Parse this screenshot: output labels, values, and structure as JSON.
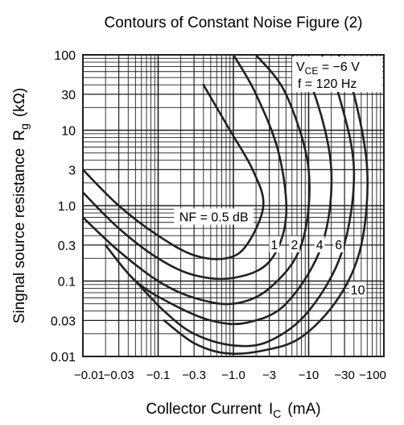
{
  "chart_data": {
    "type": "line",
    "title": "Contours of Constant Noise Figure (2)",
    "xlabel": "Collector Current",
    "xlabel_symbol": "I",
    "xlabel_sub": "C",
    "xlabel_unit": "(mA)",
    "ylabel": "Singnal source resistance",
    "ylabel_symbol": "R",
    "ylabel_sub": "g",
    "ylabel_unit": "(kΩ)",
    "x_scale": "log",
    "y_scale": "log",
    "xlim": [
      0.01,
      100
    ],
    "ylim": [
      0.01,
      100
    ],
    "x_direction": "negative current, magnitude increases to the right",
    "x_ticks": [
      "−0.01",
      "−0.03",
      "−0.1",
      "−0.3",
      "−1.0",
      "−3",
      "−10",
      "−30",
      "−100"
    ],
    "y_ticks": [
      "100",
      "30",
      "10",
      "3",
      "1.0",
      "0.3",
      "0.1",
      "0.03",
      "0.01"
    ],
    "grid": true,
    "conditions": {
      "vce_symbol": "V",
      "vce_sub": "CE",
      "vce_value": " = −6 V",
      "freq": "f = 120 Hz"
    },
    "series": [
      {
        "name": "NF = 0.5 dB",
        "x": [
          0.01,
          0.03,
          0.1,
          0.3,
          0.8,
          1.5,
          2.5,
          1.8,
          0.9,
          0.4
        ],
        "y": [
          3,
          1.0,
          0.4,
          0.22,
          0.2,
          0.3,
          1.0,
          3,
          10,
          40
        ]
      },
      {
        "name": "1",
        "x": [
          0.01,
          0.03,
          0.1,
          0.3,
          1.0,
          3.0,
          5.0,
          4.0,
          2.0,
          1.0
        ],
        "y": [
          1.5,
          0.5,
          0.2,
          0.12,
          0.11,
          0.18,
          0.7,
          5,
          30,
          100
        ]
      },
      {
        "name": "2",
        "x": [
          0.01,
          0.03,
          0.1,
          0.3,
          1.0,
          3.0,
          8.0,
          10.0,
          5.0,
          2.0
        ],
        "y": [
          0.7,
          0.25,
          0.1,
          0.06,
          0.05,
          0.08,
          0.3,
          3,
          30,
          100
        ]
      },
      {
        "name": "4",
        "x": [
          0.02,
          0.05,
          0.15,
          0.5,
          1.5,
          5.0,
          15.0,
          20.0,
          12.0,
          6.0
        ],
        "y": [
          0.3,
          0.1,
          0.05,
          0.03,
          0.028,
          0.05,
          0.3,
          3,
          30,
          100
        ]
      },
      {
        "name": "6",
        "x": [
          0.05,
          0.12,
          0.3,
          1.0,
          3.0,
          10.0,
          28.0,
          40.0,
          25.0,
          15.0
        ],
        "y": [
          0.1,
          0.04,
          0.02,
          0.014,
          0.016,
          0.04,
          0.25,
          3,
          30,
          100
        ]
      },
      {
        "name": "10",
        "x": [
          0.12,
          0.3,
          0.8,
          2.5,
          8.0,
          25.0,
          50.0,
          60.0,
          40.0,
          25.0
        ],
        "y": [
          0.03,
          0.015,
          0.011,
          0.012,
          0.018,
          0.06,
          0.3,
          3,
          30,
          100
        ]
      }
    ],
    "curve_labels": [
      {
        "text": "NF = 0.5 dB",
        "x": 0.55,
        "y": 0.7
      },
      {
        "text": "1",
        "x": 3.5,
        "y": 0.3
      },
      {
        "text": "2",
        "x": 6.5,
        "y": 0.3
      },
      {
        "text": "4",
        "x": 14,
        "y": 0.3
      },
      {
        "text": "6",
        "x": 25,
        "y": 0.3
      },
      {
        "text": "10",
        "x": 45,
        "y": 0.075
      }
    ]
  }
}
